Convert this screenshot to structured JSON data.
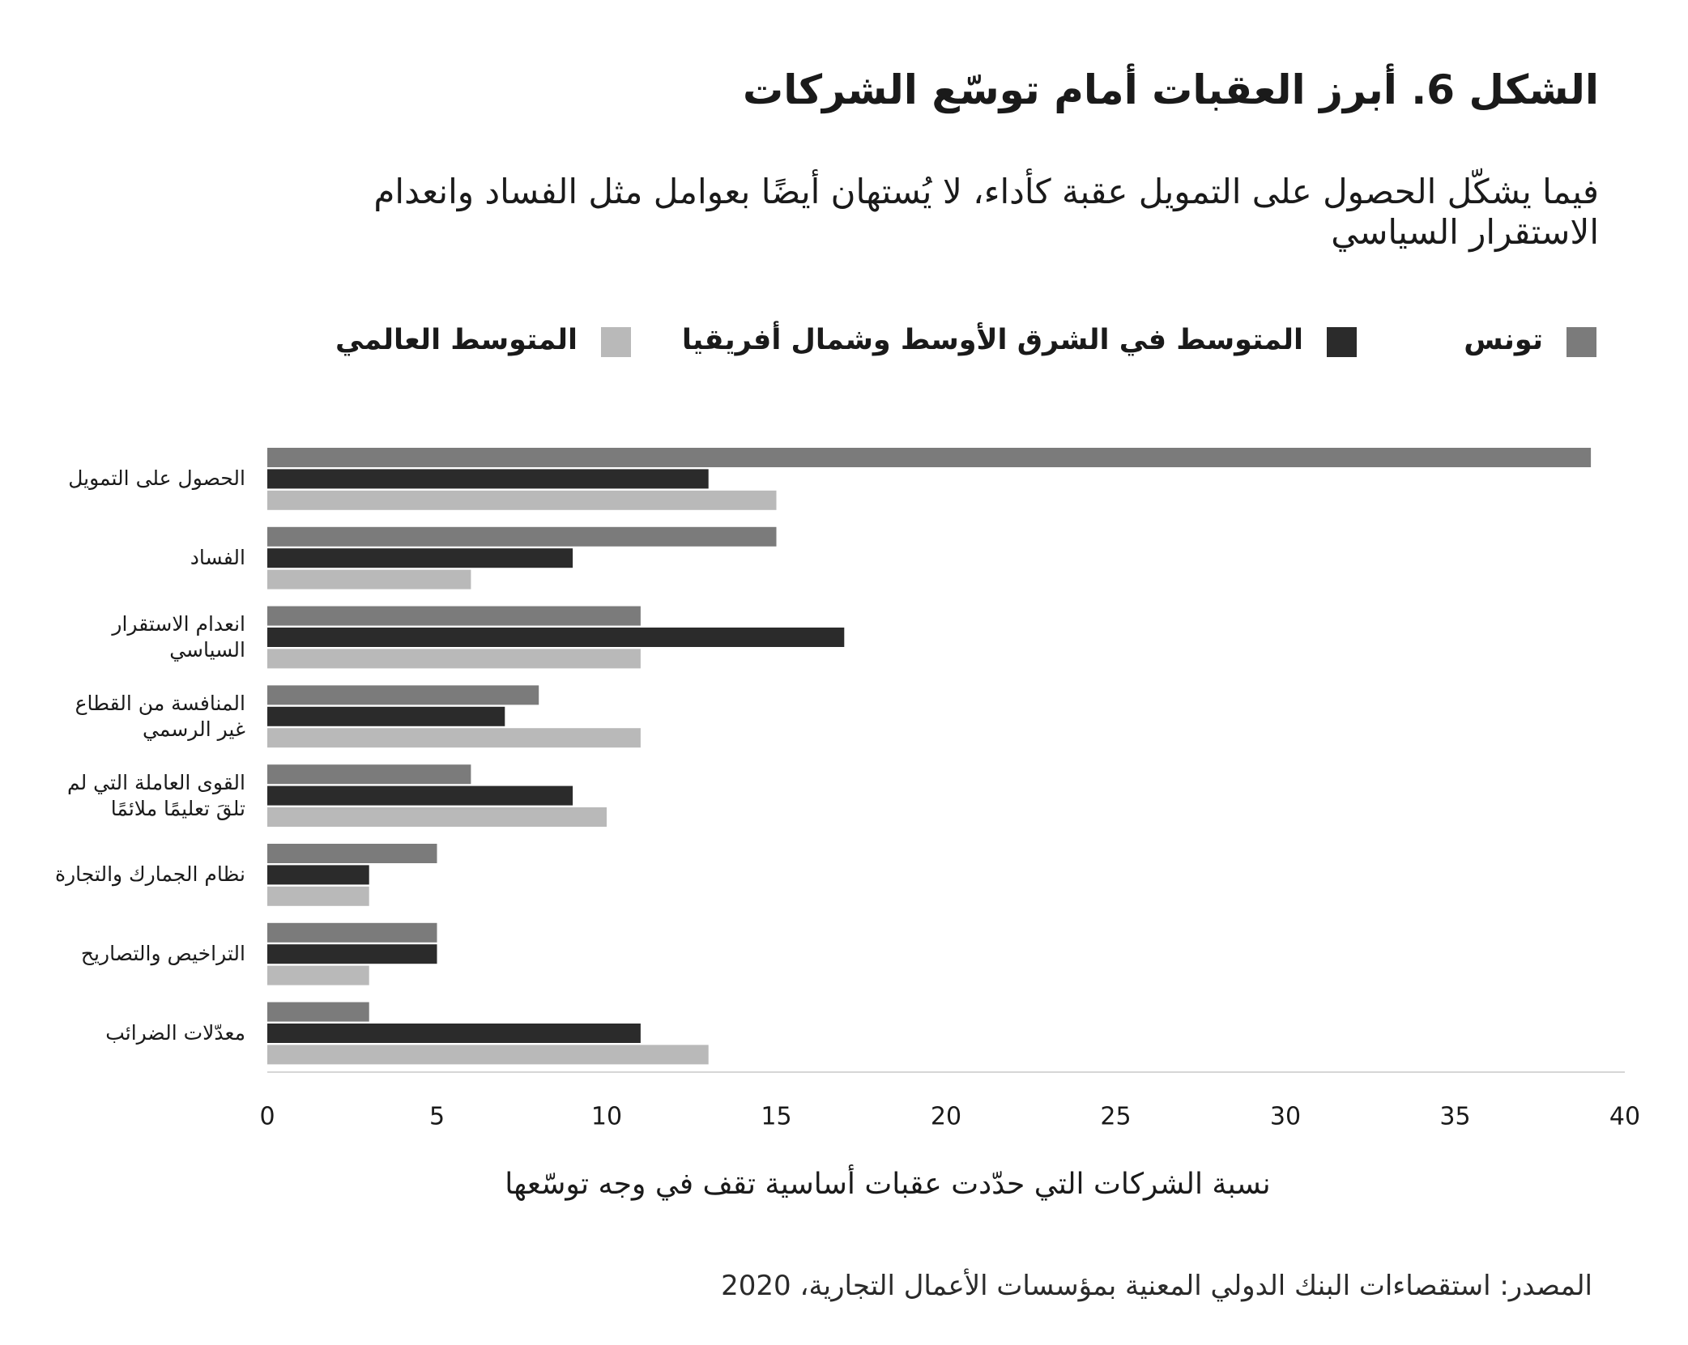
{
  "chart_data": {
    "type": "bar",
    "orientation": "horizontal",
    "title": "الشكل 6. أبرز العقبات أمام توسّع الشركات",
    "subtitle": "فيما يشكّل الحصول على التمويل عقبة كأداء، لا يُستهان أيضًا بعوامل مثل الفساد وانعدام الاستقرار السياسي",
    "categories": [
      "الحصول على التمويل",
      "الفساد",
      "انعدام الاستقرار\nالسياسي",
      "المنافسة من القطاع\nغير الرسمي",
      "القوى العاملة التي لم\nتلقَ تعليمًا ملائمًا",
      "نظام الجمارك والتجارة",
      "التراخيص والتصاريح",
      "معدّلات الضرائب"
    ],
    "series": [
      {
        "name": "تونس",
        "color": "#7b7b7b",
        "values": [
          39,
          15,
          11,
          8,
          6,
          5,
          5,
          3
        ]
      },
      {
        "name": "المتوسط في الشرق الأوسط وشمال أفريقيا",
        "color": "#2b2b2b",
        "values": [
          13,
          9,
          17,
          7,
          9,
          3,
          5,
          11
        ]
      },
      {
        "name": "المتوسط العالمي",
        "color": "#b9b9b9",
        "values": [
          15,
          6,
          11,
          11,
          10,
          3,
          3,
          13
        ]
      }
    ],
    "xlim": [
      0,
      40
    ],
    "xticks": [
      0,
      5,
      10,
      15,
      20,
      25,
      30,
      35,
      40
    ],
    "xlabel": "نسبة الشركات التي حدّدت عقبات أساسية تقف في وجه توسّعها",
    "source": "المصدر: استقصاءات البنك الدولي المعنية بمؤسسات الأعمال التجارية، 2020",
    "grid": false,
    "legend_position": "top"
  }
}
